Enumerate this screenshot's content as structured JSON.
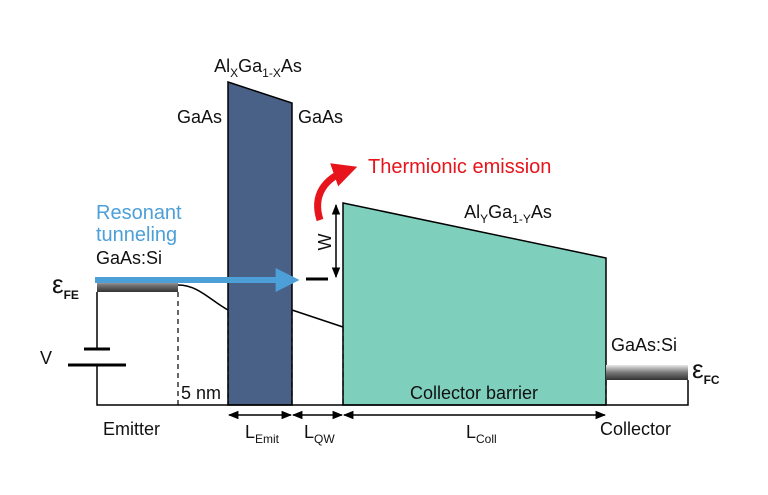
{
  "emitter_barrier": {
    "label": [
      "Al",
      "X",
      "Ga",
      "1-X",
      "As"
    ],
    "left_material": "GaAs",
    "right_material": "GaAs"
  },
  "collector_barrier": {
    "label": [
      "Al",
      "Y",
      "Ga",
      "1-Y",
      "As"
    ],
    "name": "Collector barrier"
  },
  "annotations": {
    "thermionic": "Thermionic emission",
    "resonant": [
      "Resonant",
      "tunneling"
    ],
    "well_depth": "W",
    "spacer": "5 nm"
  },
  "emitter": {
    "material": "GaAs:Si",
    "fermi": [
      "ε",
      "FE"
    ],
    "name": "Emitter"
  },
  "collector": {
    "material": "GaAs:Si",
    "fermi": [
      "ε",
      "FC"
    ],
    "name": "Collector"
  },
  "bias": "V",
  "dimensions": [
    [
      "L",
      "Emit"
    ],
    [
      "L",
      "QW"
    ],
    [
      "L",
      "Coll"
    ]
  ]
}
